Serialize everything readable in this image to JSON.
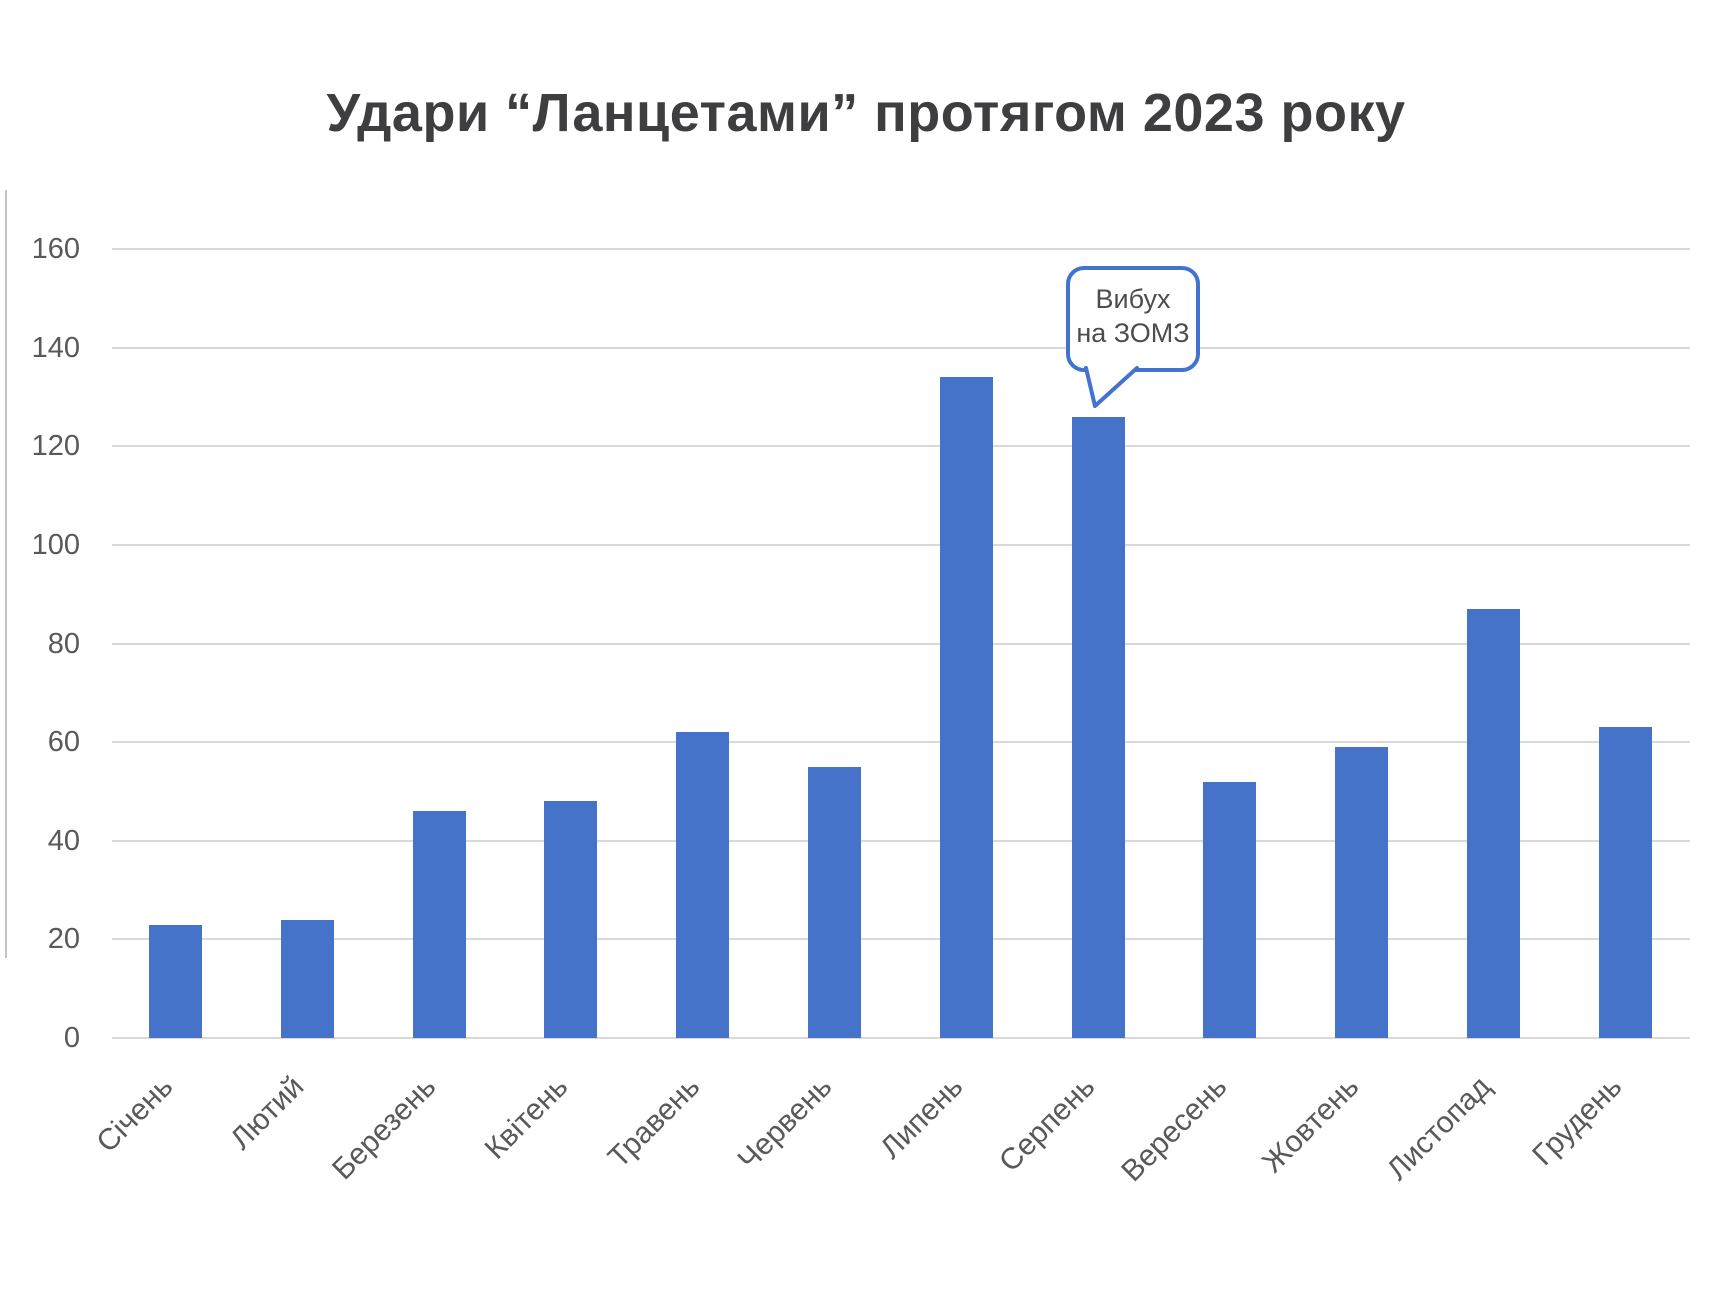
{
  "chart_data": {
    "type": "bar",
    "title": "Удари “Ланцетами” протягом 2023 року",
    "categories": [
      "Січень",
      "Лютий",
      "Березень",
      "Квітень",
      "Травень",
      "Червень",
      "Липень",
      "Серпень",
      "Вересень",
      "Жовтень",
      "Листопад",
      "Грудень"
    ],
    "values": [
      23,
      24,
      46,
      48,
      62,
      55,
      134,
      126,
      52,
      59,
      87,
      63
    ],
    "xlabel": "",
    "ylabel": "",
    "ylim": [
      0,
      170
    ],
    "yticks": [
      0,
      20,
      40,
      60,
      80,
      100,
      120,
      140,
      160
    ],
    "grid": true,
    "legend": false,
    "annotation": {
      "line1": "Вибух",
      "line2": "на ЗОМЗ",
      "target_category": "Серпень"
    }
  },
  "colors": {
    "bar": "#4573c9",
    "grid": "#d9d9d9",
    "axis_text": "#595959",
    "title_text": "#3e3e40",
    "callout_border": "#4273d0",
    "callout_text": "#4d4d4d",
    "background": "#ffffff"
  }
}
